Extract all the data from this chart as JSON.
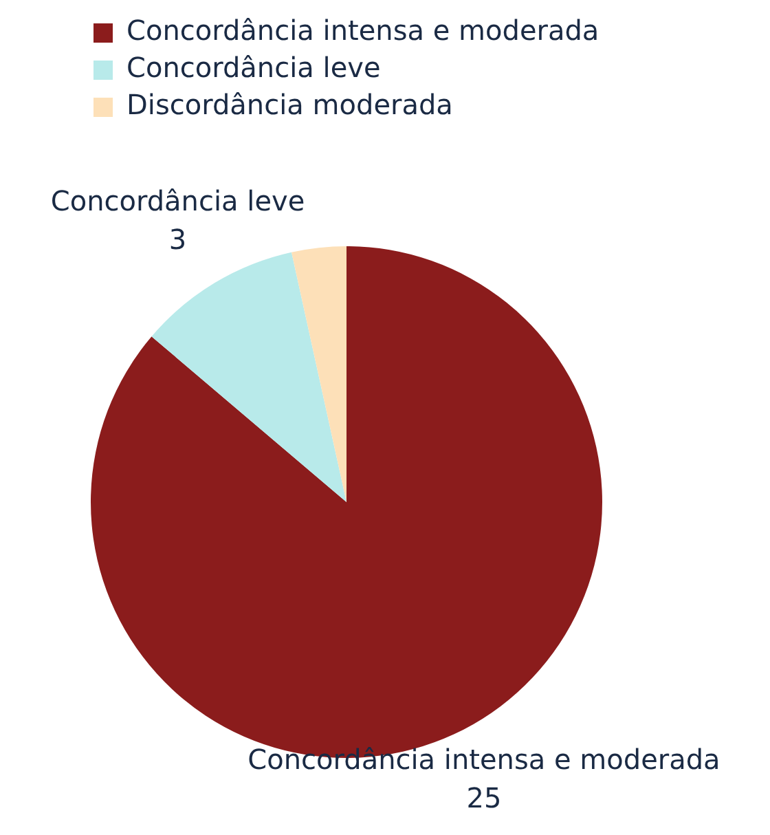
{
  "chart_data": {
    "type": "pie",
    "categories": [
      "Concordância intensa e moderada",
      "Concordância leve",
      "Discordância moderada"
    ],
    "values": [
      25,
      3,
      1
    ],
    "colors": [
      "#8b1c1c",
      "#b8eaea",
      "#fde0b8"
    ],
    "value_labels": [
      "25",
      "3",
      null
    ],
    "legend": "top left"
  }
}
